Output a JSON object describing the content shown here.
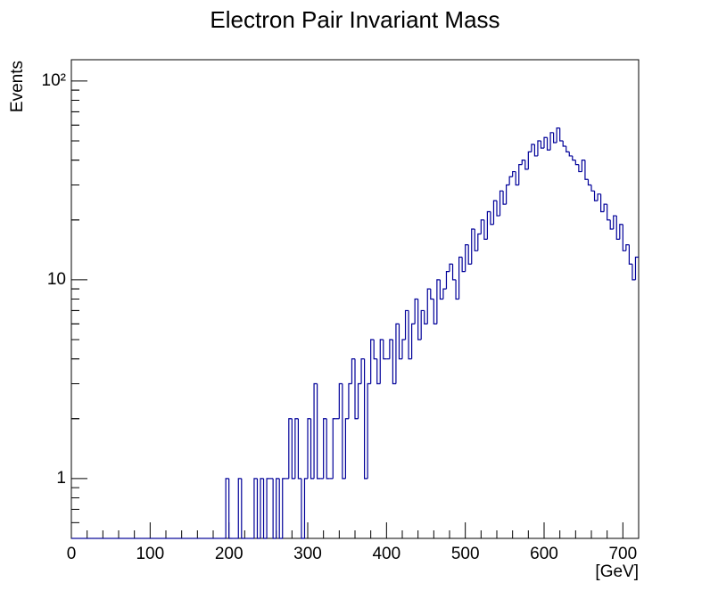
{
  "chart_data": {
    "type": "histogram",
    "title": "Electron Pair Invariant Mass",
    "x_label": "[GeV]",
    "y_label": "Events",
    "color": "#000099",
    "log_y": true,
    "bins": [
      0,
      4,
      8,
      12,
      16,
      20,
      24,
      28,
      32,
      36,
      40,
      44,
      48,
      52,
      56,
      60,
      64,
      68,
      72,
      76,
      80,
      84,
      88,
      92,
      96,
      100,
      104,
      108,
      112,
      116,
      120,
      124,
      128,
      132,
      136,
      140,
      144,
      148,
      152,
      156,
      160,
      164,
      168,
      172,
      176,
      180,
      184,
      188,
      192,
      196,
      200,
      204,
      208,
      212,
      216,
      220,
      224,
      228,
      232,
      236,
      240,
      244,
      248,
      252,
      256,
      260,
      264,
      268,
      272,
      276,
      280,
      284,
      288,
      292,
      296,
      300,
      304,
      308,
      312,
      316,
      320,
      324,
      328,
      332,
      336,
      340,
      344,
      348,
      352,
      356,
      360,
      364,
      368,
      372,
      376,
      380,
      384,
      388,
      392,
      396,
      400,
      404,
      408,
      412,
      416,
      420,
      424,
      428,
      432,
      436,
      440,
      444,
      448,
      452,
      456,
      460,
      464,
      468,
      472,
      476,
      480,
      484,
      488,
      492,
      496,
      500,
      504,
      508,
      512,
      516,
      520,
      524,
      528,
      532,
      536,
      540,
      544,
      548,
      552,
      556,
      560,
      564,
      568,
      572,
      576,
      580,
      584,
      588,
      592,
      596,
      600,
      604,
      608,
      612,
      616,
      620,
      624,
      628,
      632,
      636,
      640,
      644,
      648,
      652,
      656,
      660,
      664,
      668,
      672,
      676,
      680,
      684,
      688,
      692,
      696,
      700,
      704,
      708,
      712,
      716,
      720
    ],
    "values": [
      0,
      0,
      0,
      0,
      0,
      0,
      0,
      0,
      0,
      0,
      0,
      0,
      0,
      0,
      0,
      0,
      0,
      0,
      0,
      0,
      0,
      0,
      0,
      0,
      0,
      0,
      0,
      0,
      0,
      0,
      0,
      0,
      0,
      0,
      0,
      0,
      0,
      0,
      0,
      0,
      0,
      0,
      0,
      0,
      0,
      0,
      0,
      0,
      0,
      1,
      0,
      0,
      0,
      1,
      0,
      0,
      0,
      0,
      1,
      0,
      1,
      0,
      1,
      1,
      0,
      1,
      0,
      1,
      1,
      2,
      1,
      2,
      1,
      0,
      1,
      2,
      1,
      3,
      1,
      1,
      2,
      1,
      1,
      2,
      2,
      3,
      1,
      2,
      3,
      4,
      2,
      3,
      4,
      1,
      3,
      5,
      4,
      3,
      5,
      4,
      4,
      5,
      3,
      6,
      4,
      5,
      7,
      4,
      6,
      8,
      5,
      7,
      6,
      9,
      8,
      6,
      10,
      8,
      9,
      11,
      12,
      10,
      8,
      13,
      11,
      15,
      12,
      18,
      14,
      17,
      20,
      16,
      22,
      19,
      25,
      21,
      28,
      24,
      30,
      33,
      35,
      30,
      38,
      40,
      36,
      44,
      48,
      42,
      50,
      46,
      52,
      45,
      55,
      49,
      58,
      50,
      47,
      44,
      42,
      40,
      38,
      35,
      40,
      32,
      30,
      28,
      25,
      27,
      22,
      24,
      20,
      18,
      21,
      16,
      19,
      14,
      15,
      12,
      10,
      13
    ],
    "xlim": [
      0,
      720
    ],
    "xticks": [
      0,
      100,
      200,
      300,
      400,
      500,
      600,
      700
    ],
    "ylim": [
      0.5,
      128
    ],
    "yticks": [
      1,
      10,
      {
        "value": 100,
        "label": "10²"
      }
    ]
  }
}
